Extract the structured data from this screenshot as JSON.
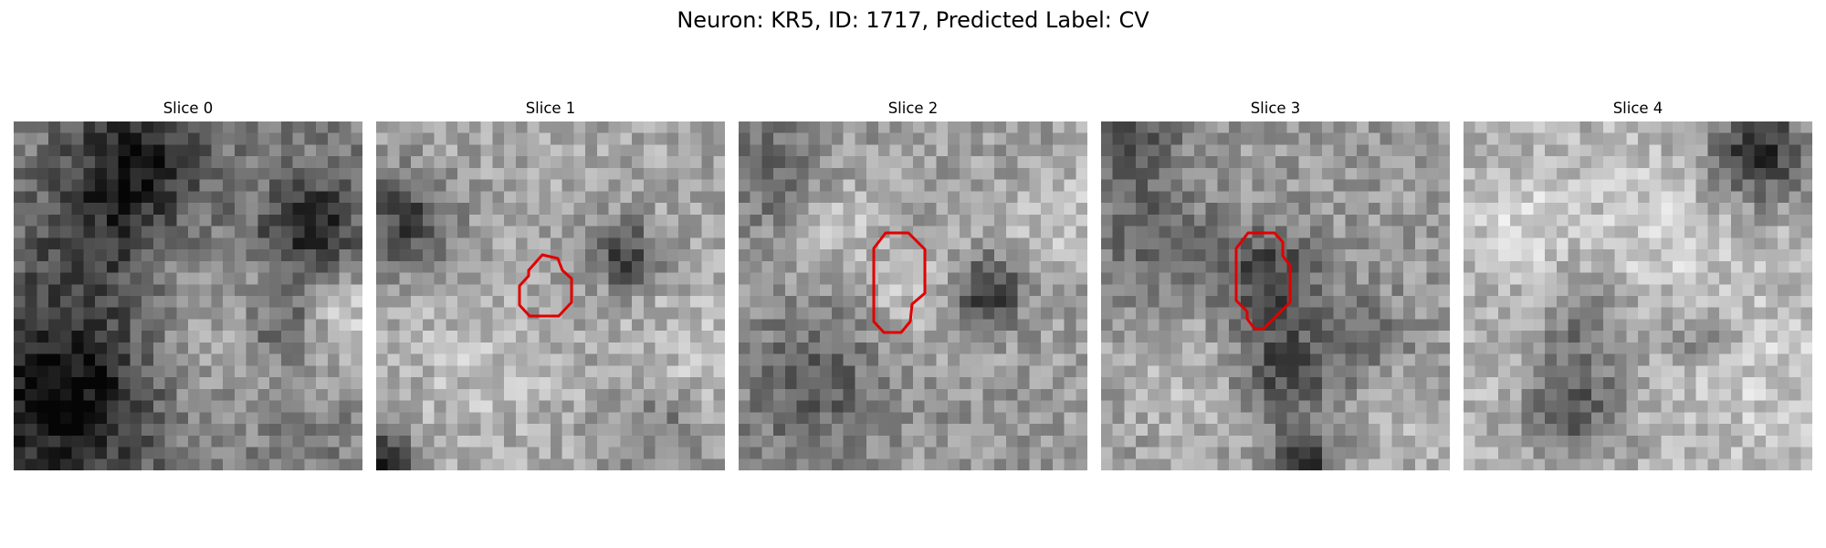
{
  "figure": {
    "title": "Neuron: KR5, ID: 1717, Predicted Label: CV"
  },
  "slices": [
    {
      "title": "Slice 0"
    },
    {
      "title": "Slice 1"
    },
    {
      "title": "Slice 2"
    },
    {
      "title": "Slice 3"
    },
    {
      "title": "Slice 4"
    }
  ],
  "colors": {
    "contour": "#e00000",
    "background": "#ffffff"
  }
}
